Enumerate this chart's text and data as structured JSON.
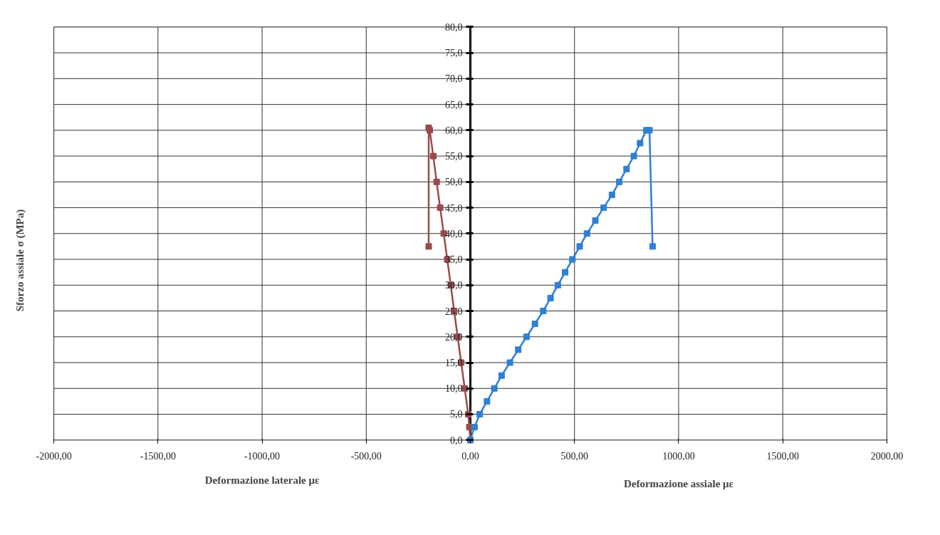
{
  "chart_data": {
    "type": "line",
    "xlabel": "Deformazione laterale με",
    "ylabel": "Sforzo assiale σ (MPa)",
    "annotations": [
      "Deformazione assiale με"
    ],
    "xlim": [
      -2000,
      2000
    ],
    "ylim": [
      0,
      80
    ],
    "xticks": [
      {
        "value": -2000,
        "label": "-2000,00"
      },
      {
        "value": -1500,
        "label": "-1500,00"
      },
      {
        "value": -1000,
        "label": "-1000,00"
      },
      {
        "value": -500,
        "label": "-500,00"
      },
      {
        "value": 0,
        "label": "0,00"
      },
      {
        "value": 500,
        "label": "500,00"
      },
      {
        "value": 1000,
        "label": "1000,00"
      },
      {
        "value": 1500,
        "label": "1500,00"
      },
      {
        "value": 2000,
        "label": "2000,00"
      }
    ],
    "yticks": [
      {
        "value": 0,
        "label": "0,0"
      },
      {
        "value": 5,
        "label": "5,0"
      },
      {
        "value": 10,
        "label": "10,0"
      },
      {
        "value": 15,
        "label": "15,0"
      },
      {
        "value": 20,
        "label": "20,0"
      },
      {
        "value": 25,
        "label": "25,0"
      },
      {
        "value": 30,
        "label": "30,0"
      },
      {
        "value": 35,
        "label": "35,0"
      },
      {
        "value": 40,
        "label": "40,0"
      },
      {
        "value": 45,
        "label": "45,0"
      },
      {
        "value": 50,
        "label": "50,0"
      },
      {
        "value": 55,
        "label": "55,0"
      },
      {
        "value": 60,
        "label": "60,0"
      },
      {
        "value": 65,
        "label": "65,0"
      },
      {
        "value": 70,
        "label": "70,0"
      },
      {
        "value": 75,
        "label": "75,0"
      },
      {
        "value": 80,
        "label": "80,0"
      }
    ],
    "grid": true,
    "marker": "square",
    "line_style": "solid",
    "series": [
      {
        "color": "#9b4a4c",
        "x": [
          0,
          -5,
          -10,
          -27,
          -44,
          -61,
          -78,
          -94,
          -111,
          -128,
          -145,
          -162,
          -178,
          -195,
          -200,
          -200
        ],
        "values": [
          0,
          2.5,
          5,
          10,
          15,
          20,
          25,
          30,
          35,
          40,
          45,
          50,
          55,
          60,
          60.5,
          37.5
        ]
      },
      {
        "color": "#2f7fd6",
        "x": [
          0,
          20,
          45,
          80,
          115,
          150,
          190,
          230,
          270,
          310,
          350,
          385,
          420,
          455,
          490,
          525,
          560,
          600,
          640,
          680,
          715,
          750,
          785,
          815,
          845,
          860,
          875
        ],
        "values": [
          0,
          2.5,
          5,
          7.5,
          10,
          12.5,
          15,
          17.5,
          20,
          22.5,
          25,
          27.5,
          30,
          32.5,
          35,
          37.5,
          40,
          42.5,
          45,
          47.5,
          50,
          52.5,
          55,
          57.5,
          60,
          60,
          37.5
        ]
      }
    ]
  }
}
